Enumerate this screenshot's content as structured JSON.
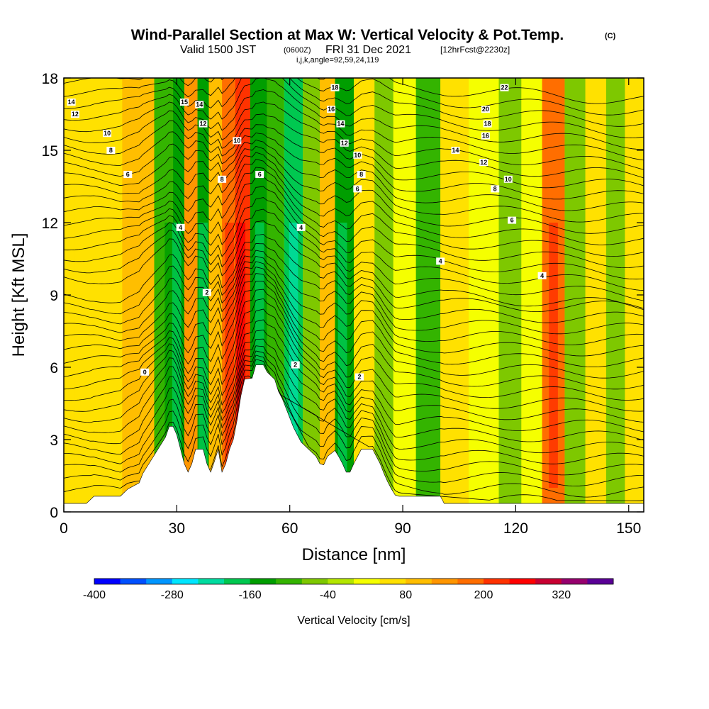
{
  "chart_data": {
    "type": "heatmap",
    "title": "Wind-Parallel Section at Max W: Vertical Velocity & Pot.Temp.",
    "title_mark": "(C)",
    "subtitle": {
      "valid_prefix": "Valid 1500 JST",
      "utc": "(0600Z)",
      "date": "FRI 31 Dec 2021",
      "forecast": "[12hrFcst@2230z]"
    },
    "section_params": "i,j,k,angle=92,59,24,119",
    "xlabel": "Distance [nm]",
    "ylabel": "Height [Kft MSL]",
    "xlim": [
      0,
      154
    ],
    "ylim": [
      0,
      18
    ],
    "x_ticks": [
      0,
      30,
      60,
      90,
      120,
      150
    ],
    "y_ticks": [
      0,
      3,
      6,
      9,
      12,
      15,
      18
    ],
    "x_tick_labels": [
      "0",
      "30",
      "60",
      "90",
      "120",
      "150"
    ],
    "y_tick_labels": [
      "0",
      "3",
      "6",
      "9",
      "12",
      "15",
      "18"
    ],
    "colorbar": {
      "label": "Vertical Velocity [cm/s]",
      "levels": [
        -400,
        -360,
        -320,
        -280,
        -240,
        -200,
        -160,
        -120,
        -80,
        -40,
        0,
        40,
        80,
        120,
        160,
        200,
        240,
        280,
        320,
        360
      ],
      "tick_values": [
        -400,
        -280,
        -160,
        -40,
        80,
        200,
        320
      ],
      "tick_labels": [
        "-400",
        "-280",
        "-160",
        "-40",
        "80",
        "200",
        "320"
      ],
      "colors": [
        "#0000ff",
        "#0050ff",
        "#0096ff",
        "#00e6ff",
        "#00dca0",
        "#00c850",
        "#009e00",
        "#34b400",
        "#7ec800",
        "#b4e600",
        "#f5ff00",
        "#ffe100",
        "#ffbe00",
        "#ff9600",
        "#ff6e00",
        "#ff3200",
        "#ff0000",
        "#c80032",
        "#96006e",
        "#5a0096"
      ]
    },
    "velocity_bands": [
      {
        "x": 6,
        "w": 44
      },
      {
        "x": 11,
        "w": 40
      },
      {
        "x": 20,
        "w": 80
      },
      {
        "x": 28,
        "w": -120
      },
      {
        "x": 30,
        "w": -150
      },
      {
        "x": 34,
        "w": 120
      },
      {
        "x": 37,
        "w": -140
      },
      {
        "x": 40,
        "w": 100
      },
      {
        "x": 44,
        "w": 160
      },
      {
        "x": 47,
        "w": 220
      },
      {
        "x": 52,
        "w": -140
      },
      {
        "x": 56,
        "w": -100
      },
      {
        "x": 61,
        "w": -170
      },
      {
        "x": 66,
        "w": -60
      },
      {
        "x": 70,
        "w": 90
      },
      {
        "x": 74,
        "w": -130
      },
      {
        "x": 80,
        "w": 60
      },
      {
        "x": 85,
        "w": -60
      },
      {
        "x": 90,
        "w": 20
      },
      {
        "x": 97,
        "w": -110
      },
      {
        "x": 103,
        "w": 40
      },
      {
        "x": 112,
        "w": 20
      },
      {
        "x": 119,
        "w": -70
      },
      {
        "x": 124,
        "w": 10
      },
      {
        "x": 130,
        "w": 160
      },
      {
        "x": 136,
        "w": -50
      },
      {
        "x": 141,
        "w": 60
      },
      {
        "x": 147,
        "w": -60
      },
      {
        "x": 151,
        "w": 40
      }
    ],
    "terrain_kft": [
      [
        0,
        0.35
      ],
      [
        6,
        0.35
      ],
      [
        8,
        0.65
      ],
      [
        15,
        0.65
      ],
      [
        17,
        0.95
      ],
      [
        20,
        1.2
      ],
      [
        21,
        1.6
      ],
      [
        23,
        2.1
      ],
      [
        25,
        2.6
      ],
      [
        27,
        3.1
      ],
      [
        28,
        3.55
      ],
      [
        29,
        3.55
      ],
      [
        30,
        3.2
      ],
      [
        31,
        2.6
      ],
      [
        32,
        2.0
      ],
      [
        33,
        1.65
      ],
      [
        34,
        2.0
      ],
      [
        35,
        2.6
      ],
      [
        37,
        2.6
      ],
      [
        38,
        2.0
      ],
      [
        39,
        1.65
      ],
      [
        40,
        2.1
      ],
      [
        41,
        2.6
      ],
      [
        42,
        1.65
      ],
      [
        43,
        2.0
      ],
      [
        44,
        2.6
      ],
      [
        45,
        3.0
      ],
      [
        46,
        3.8
      ],
      [
        47,
        4.8
      ],
      [
        48,
        5.5
      ],
      [
        50,
        5.55
      ],
      [
        51,
        6.1
      ],
      [
        53,
        6.1
      ],
      [
        54,
        5.8
      ],
      [
        56,
        5.5
      ],
      [
        57,
        5.0
      ],
      [
        58,
        4.7
      ],
      [
        59,
        4.3
      ],
      [
        60,
        3.9
      ],
      [
        61,
        3.5
      ],
      [
        62,
        3.2
      ],
      [
        63,
        2.9
      ],
      [
        65,
        2.6
      ],
      [
        67,
        2.3
      ],
      [
        68,
        2.0
      ],
      [
        69,
        1.95
      ],
      [
        70,
        2.3
      ],
      [
        72,
        2.55
      ],
      [
        73,
        2.3
      ],
      [
        74,
        2.0
      ],
      [
        75,
        1.65
      ],
      [
        76,
        1.65
      ],
      [
        77,
        2.0
      ],
      [
        78,
        2.3
      ],
      [
        79,
        2.6
      ],
      [
        82,
        2.6
      ],
      [
        83,
        2.3
      ],
      [
        84,
        2.0
      ],
      [
        85,
        1.6
      ],
      [
        86,
        1.25
      ],
      [
        87,
        0.95
      ],
      [
        88,
        0.7
      ],
      [
        89,
        0.65
      ],
      [
        100,
        0.65
      ],
      [
        101,
        0.35
      ],
      [
        154,
        0.35
      ]
    ],
    "contour_labels": [
      {
        "text": "14",
        "x": 2,
        "y": 17.0
      },
      {
        "text": "12",
        "x": 3,
        "y": 16.5
      },
      {
        "text": "10",
        "x": 11.5,
        "y": 15.7
      },
      {
        "text": "8",
        "x": 12.5,
        "y": 15.0
      },
      {
        "text": "6",
        "x": 17,
        "y": 14.0
      },
      {
        "text": "15",
        "x": 32,
        "y": 17.0
      },
      {
        "text": "14",
        "x": 36,
        "y": 16.9
      },
      {
        "text": "12",
        "x": 37,
        "y": 16.1
      },
      {
        "text": "10",
        "x": 46,
        "y": 15.4
      },
      {
        "text": "8",
        "x": 42,
        "y": 13.8
      },
      {
        "text": "6",
        "x": 52,
        "y": 14.0
      },
      {
        "text": "4",
        "x": 31,
        "y": 11.8
      },
      {
        "text": "4",
        "x": 63,
        "y": 11.8
      },
      {
        "text": "2",
        "x": 38,
        "y": 9.1
      },
      {
        "text": "0",
        "x": 21.5,
        "y": 5.8
      },
      {
        "text": "2",
        "x": 61.5,
        "y": 6.1
      },
      {
        "text": "2",
        "x": 78.5,
        "y": 5.6
      },
      {
        "text": "18",
        "x": 72,
        "y": 17.6
      },
      {
        "text": "16",
        "x": 71,
        "y": 16.7
      },
      {
        "text": "14",
        "x": 73.5,
        "y": 16.1
      },
      {
        "text": "12",
        "x": 74.5,
        "y": 15.3
      },
      {
        "text": "10",
        "x": 78,
        "y": 14.8
      },
      {
        "text": "8",
        "x": 79,
        "y": 14.0
      },
      {
        "text": "6",
        "x": 78,
        "y": 13.4
      },
      {
        "text": "22",
        "x": 117,
        "y": 17.6
      },
      {
        "text": "20",
        "x": 112,
        "y": 16.7
      },
      {
        "text": "18",
        "x": 112.5,
        "y": 16.1
      },
      {
        "text": "16",
        "x": 112,
        "y": 15.6
      },
      {
        "text": "14",
        "x": 104,
        "y": 15.0
      },
      {
        "text": "12",
        "x": 111.5,
        "y": 14.5
      },
      {
        "text": "10",
        "x": 118,
        "y": 13.8
      },
      {
        "text": "8",
        "x": 114.5,
        "y": 13.4
      },
      {
        "text": "6",
        "x": 119,
        "y": 12.1
      },
      {
        "text": "4",
        "x": 100,
        "y": 10.4
      },
      {
        "text": "4",
        "x": 127,
        "y": 9.8
      }
    ]
  }
}
